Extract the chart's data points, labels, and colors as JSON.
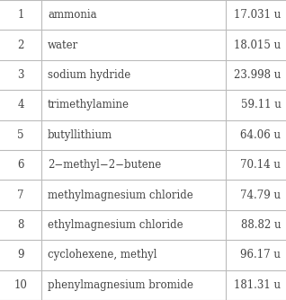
{
  "rows": [
    {
      "rank": "1",
      "name": "ammonia",
      "mass": "17.031 u"
    },
    {
      "rank": "2",
      "name": "water",
      "mass": "18.015 u"
    },
    {
      "rank": "3",
      "name": "sodium hydride",
      "mass": "23.998 u"
    },
    {
      "rank": "4",
      "name": "trimethylamine",
      "mass": "59.11 u"
    },
    {
      "rank": "5",
      "name": "butyllithium",
      "mass": "64.06 u"
    },
    {
      "rank": "6",
      "name": "2−methyl−2−butene",
      "mass": "70.14 u"
    },
    {
      "rank": "7",
      "name": "methylmagnesium chloride",
      "mass": "74.79 u"
    },
    {
      "rank": "8",
      "name": "ethylmagnesium chloride",
      "mass": "88.82 u"
    },
    {
      "rank": "9",
      "name": "cyclohexene, methyl",
      "mass": "96.17 u"
    },
    {
      "rank": "10",
      "name": "phenylmagnesium bromide",
      "mass": "181.31 u"
    }
  ],
  "bg_color": "#ffffff",
  "line_color": "#bbbbbb",
  "text_color": "#444444",
  "font_size": 8.5,
  "div1": 0.145,
  "div2": 0.79
}
